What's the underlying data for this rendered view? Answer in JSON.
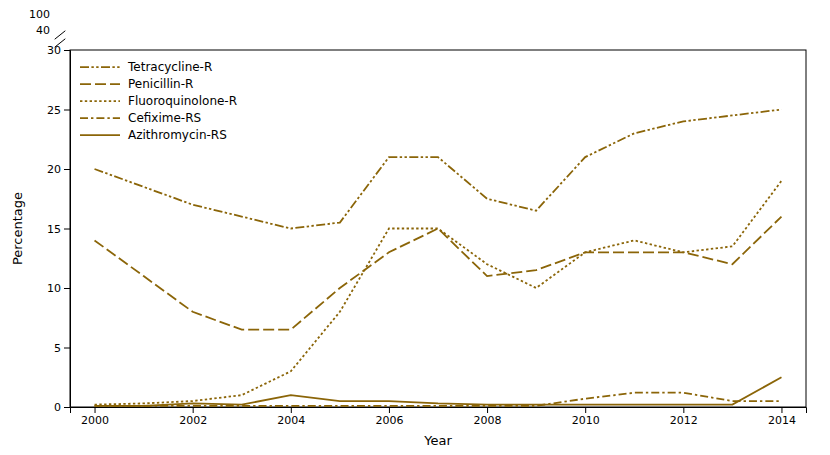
{
  "chart_data": {
    "type": "line",
    "xlabel": "Year",
    "ylabel": "Percentage",
    "x": [
      2000,
      2001,
      2002,
      2003,
      2004,
      2005,
      2006,
      2007,
      2008,
      2009,
      2010,
      2011,
      2012,
      2013,
      2014
    ],
    "series": [
      {
        "name": "Tetracycline-R",
        "color": "#8B6508",
        "line_style": "dashdotdot",
        "values": [
          20.0,
          18.5,
          17.0,
          16.0,
          15.0,
          15.5,
          21.0,
          21.0,
          17.5,
          16.5,
          21.0,
          23.0,
          24.0,
          24.5,
          25.0
        ]
      },
      {
        "name": "Penicillin-R",
        "color": "#8B6508",
        "line_style": "dashed",
        "values": [
          14.0,
          11.0,
          8.0,
          6.5,
          6.5,
          10.0,
          13.0,
          15.0,
          11.0,
          11.5,
          13.0,
          13.0,
          13.0,
          12.0,
          16.0
        ]
      },
      {
        "name": "Fluoroquinolone-R",
        "color": "#8B6508",
        "line_style": "dotted",
        "values": [
          0.2,
          0.3,
          0.5,
          1.0,
          3.0,
          8.0,
          15.0,
          15.0,
          12.0,
          10.0,
          13.0,
          14.0,
          13.0,
          13.5,
          19.0
        ]
      },
      {
        "name": "Cefixime-RS",
        "color": "#8B6508",
        "line_style": "dashdot",
        "values": [
          0.1,
          0.1,
          0.1,
          0.1,
          0.1,
          0.1,
          0.1,
          0.1,
          0.1,
          0.1,
          0.7,
          1.2,
          1.2,
          0.5,
          0.5
        ]
      },
      {
        "name": "Azithromycin-RS",
        "color": "#8B6508",
        "line_style": "solid",
        "values": [
          0.1,
          0.1,
          0.3,
          0.2,
          1.0,
          0.5,
          0.5,
          0.3,
          0.2,
          0.2,
          0.2,
          0.2,
          0.2,
          0.2,
          2.5
        ]
      }
    ],
    "xlim": [
      1999.5,
      2014.5
    ],
    "xticks": [
      2000,
      2002,
      2004,
      2006,
      2008,
      2010,
      2012,
      2014
    ],
    "ylim": [
      0,
      30
    ],
    "yticks": [
      0,
      5,
      10,
      15,
      20,
      25,
      30
    ],
    "annotations": [
      "100",
      "40"
    ],
    "legend": "upper left",
    "grid": false
  }
}
